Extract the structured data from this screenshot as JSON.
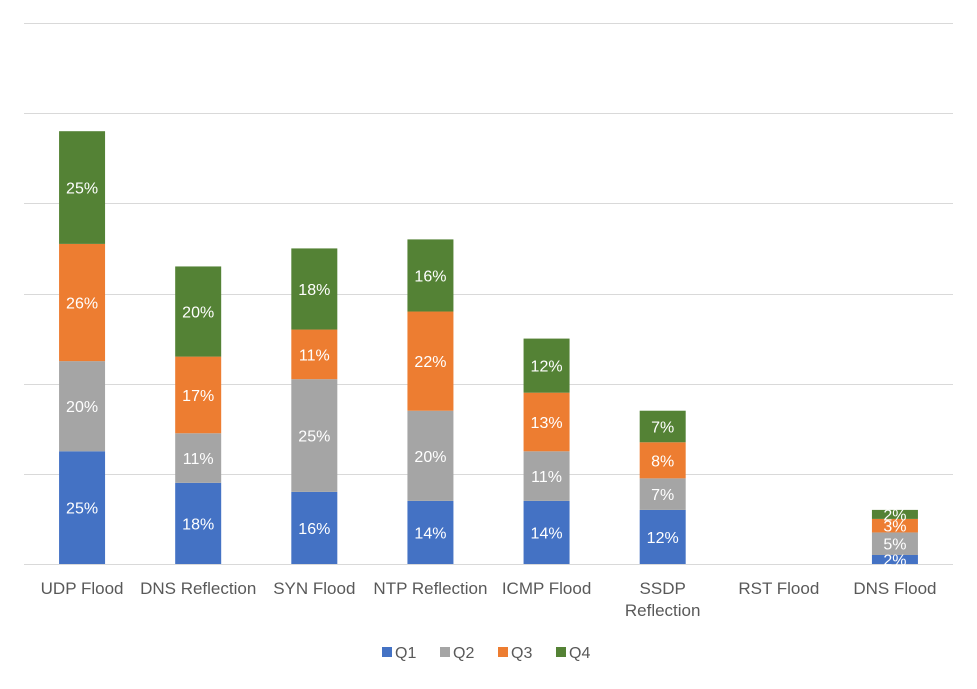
{
  "chart_data": {
    "type": "bar",
    "stacked": true,
    "categories": [
      [
        "UDP Flood"
      ],
      [
        "DNS Reflection"
      ],
      [
        "SYN Flood"
      ],
      [
        "NTP Reflection"
      ],
      [
        "ICMP Flood"
      ],
      [
        "SSDP",
        "Reflection"
      ],
      [
        "RST Flood"
      ],
      [
        "DNS Flood"
      ]
    ],
    "series": [
      {
        "name": "Q1",
        "color": "#4472c4",
        "values": [
          25,
          18,
          16,
          14,
          14,
          12,
          0,
          2
        ],
        "labels": [
          "25%",
          "18%",
          "16%",
          "14%",
          "14%",
          "12%",
          "",
          "2%"
        ]
      },
      {
        "name": "Q2",
        "color": "#a5a5a5",
        "values": [
          20,
          11,
          25,
          20,
          11,
          7,
          0,
          5
        ],
        "labels": [
          "20%",
          "11%",
          "25%",
          "20%",
          "11%",
          "7%",
          "",
          "5%"
        ]
      },
      {
        "name": "Q3",
        "color": "#ed7d31",
        "values": [
          26,
          17,
          11,
          22,
          13,
          8,
          0,
          3
        ],
        "labels": [
          "26%",
          "17%",
          "11%",
          "22%",
          "13%",
          "8%",
          "",
          "3%"
        ]
      },
      {
        "name": "Q4",
        "color": "#548235",
        "values": [
          25,
          20,
          18,
          16,
          12,
          7,
          0,
          2
        ],
        "labels": [
          "25%",
          "20%",
          "18%",
          "16%",
          "12%",
          "7%",
          "",
          "2%"
        ]
      }
    ],
    "ylim": [
      0,
      120
    ],
    "ytick_step": 20,
    "grid": true,
    "legend_position": "bottom"
  }
}
